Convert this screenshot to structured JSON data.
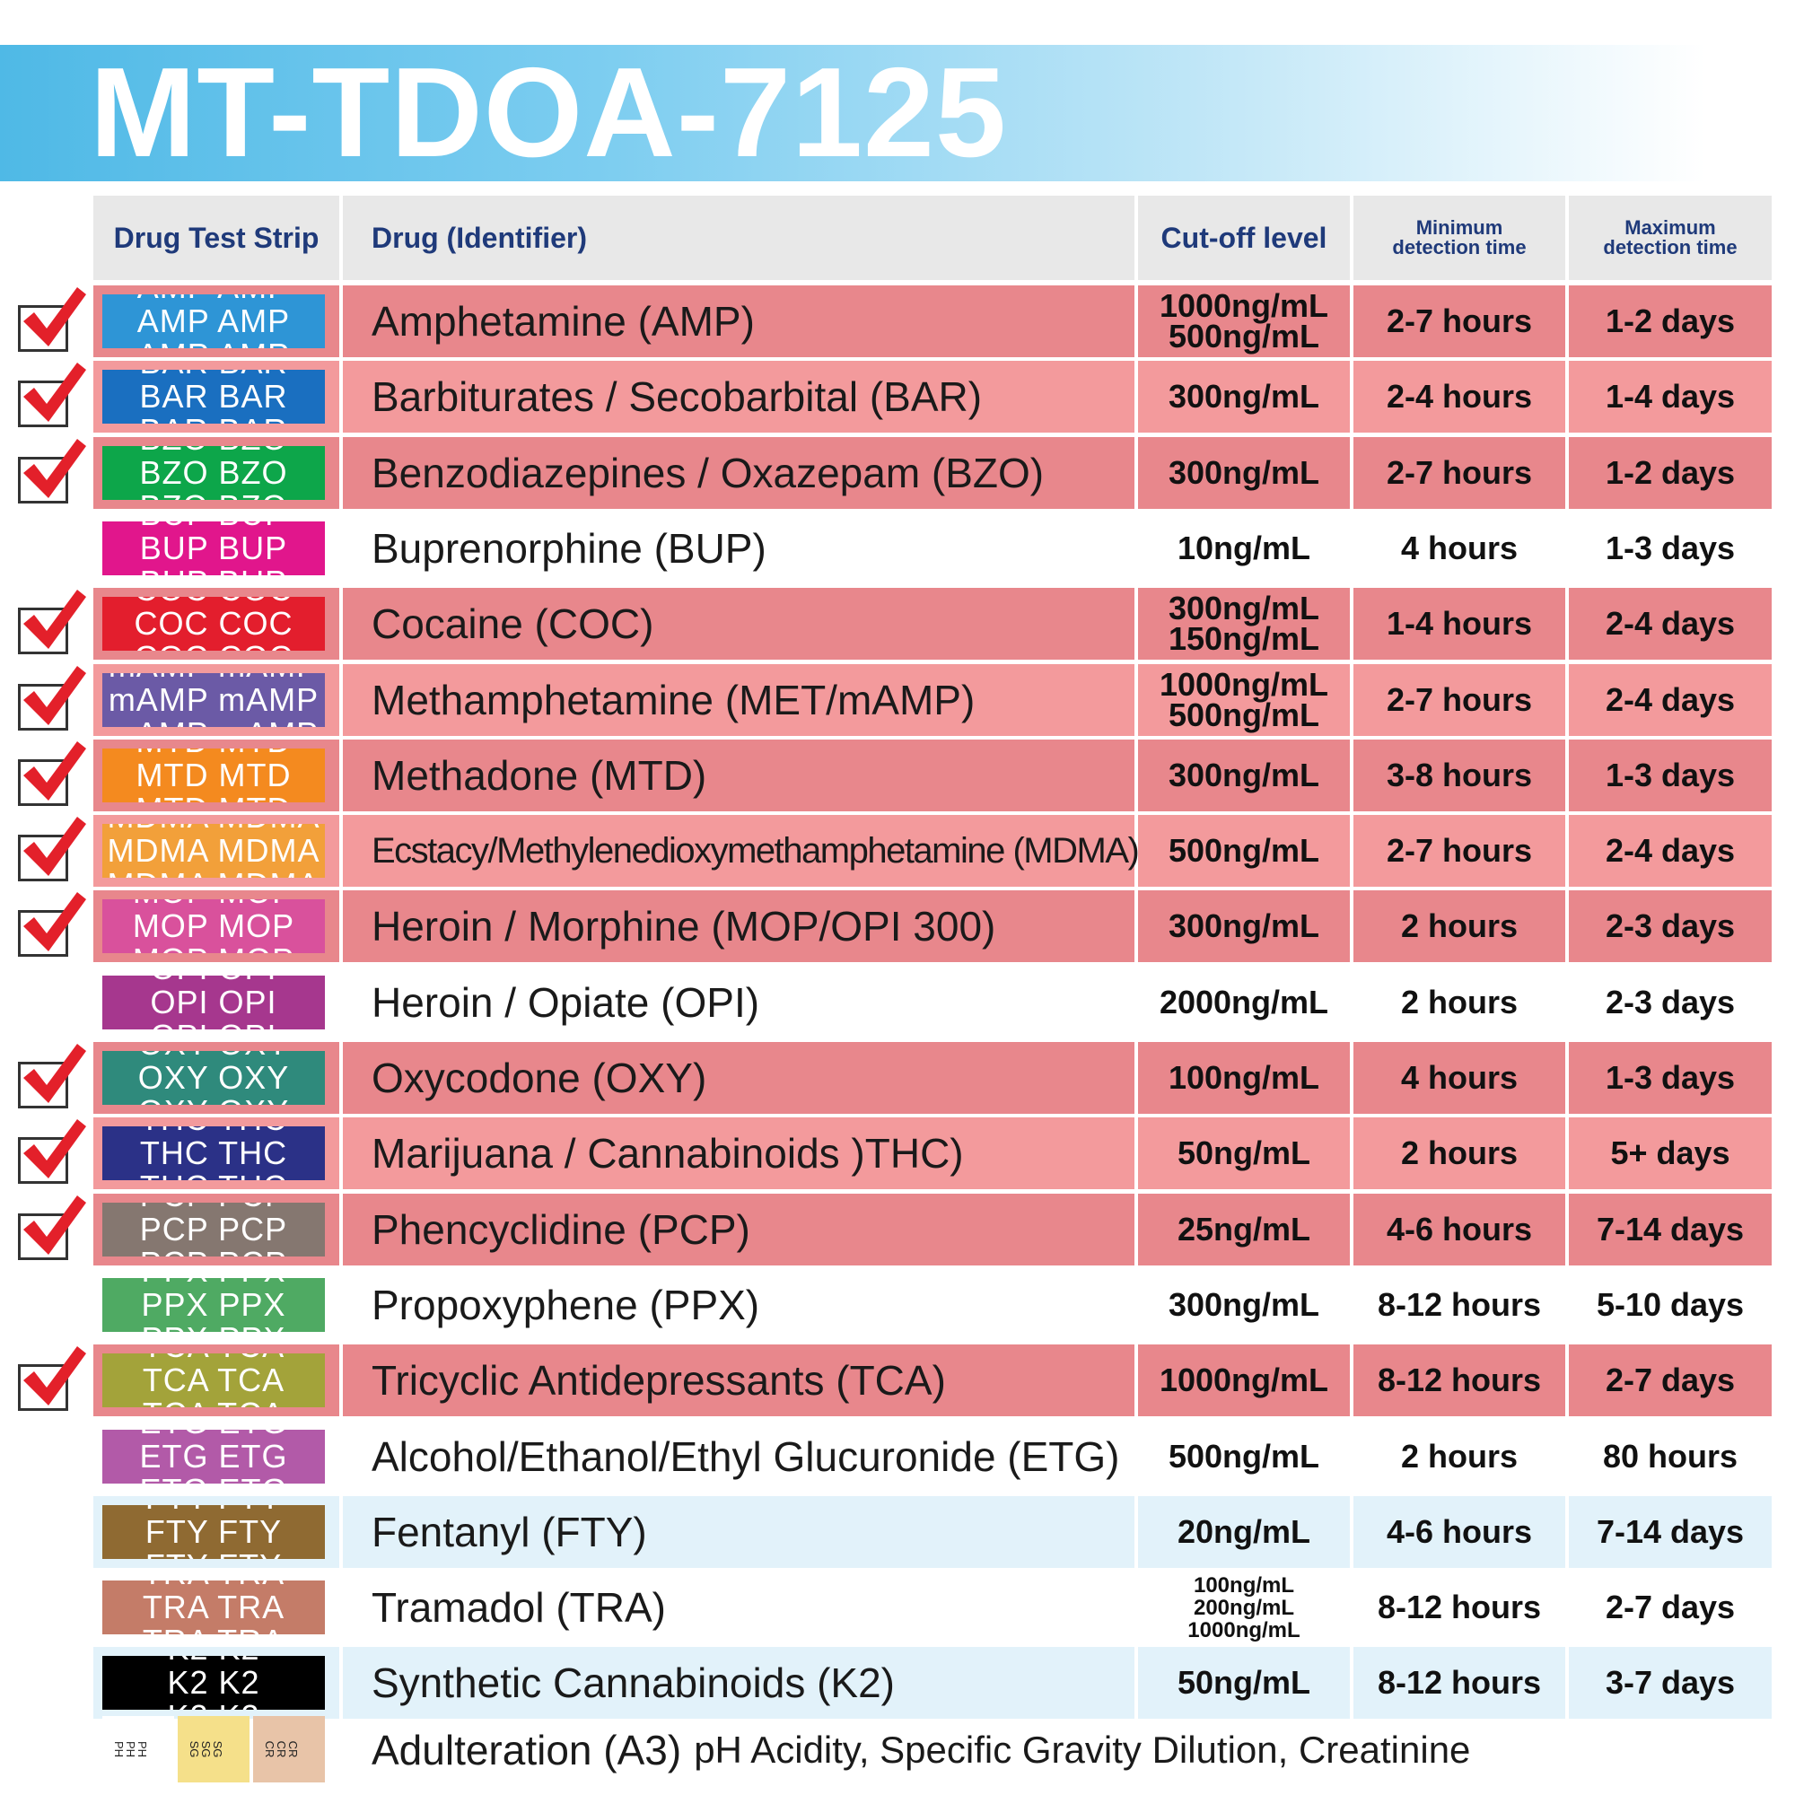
{
  "title": "MT-TDOA-7125",
  "headers": {
    "strip": "Drug Test Strip",
    "drug": "Drug (Identifier)",
    "cutoff": "Cut-off level",
    "min_line1": "Minimum",
    "min_line2": "detection time",
    "max_line1": "Maximum",
    "max_line2": "detection time"
  },
  "colors": {
    "checked_row_bg": "#e8878c",
    "checked_row_bg_alt": "#f39a9c",
    "blue_row_bg": "#e2f2fa",
    "check_red": "#e3202a",
    "header_text": "#1f3a7a"
  },
  "rows": [
    {
      "code": "AMP",
      "drug": "Amphetamine (AMP)",
      "cutoff": [
        "1000ng/mL",
        "500ng/mL"
      ],
      "min": "2-7 hours",
      "max": "1-2 days",
      "checked": true,
      "style": "pink",
      "strip_color": "#2e95d6"
    },
    {
      "code": "BAR",
      "drug": "Barbiturates / Secobarbital (BAR)",
      "cutoff": [
        "300ng/mL"
      ],
      "min": "2-4 hours",
      "max": "1-4 days",
      "checked": true,
      "style": "pink",
      "strip_color": "#1a6fc0"
    },
    {
      "code": "BZO",
      "drug": "Benzodiazepines / Oxazepam (BZO)",
      "cutoff": [
        "300ng/mL"
      ],
      "min": "2-7 hours",
      "max": "1-2 days",
      "checked": true,
      "style": "pink",
      "strip_color": "#0da64a"
    },
    {
      "code": "BUP",
      "drug": "Buprenorphine (BUP)",
      "cutoff": [
        "10ng/mL"
      ],
      "min": "4 hours",
      "max": "1-3 days",
      "checked": false,
      "style": "white",
      "strip_color": "#e1168c"
    },
    {
      "code": "COC",
      "drug": "Cocaine (COC)",
      "cutoff": [
        "300ng/mL",
        "150ng/mL"
      ],
      "min": "1-4 hours",
      "max": "2-4 days",
      "checked": true,
      "style": "pink",
      "strip_color": "#e31e2d"
    },
    {
      "code": "mAMP",
      "drug": "Methamphetamine (MET/mAMP)",
      "cutoff": [
        "1000ng/mL",
        "500ng/mL"
      ],
      "min": "2-7 hours",
      "max": "2-4 days",
      "checked": true,
      "style": "pink",
      "strip_color": "#6b5aa6"
    },
    {
      "code": "MTD",
      "drug": "Methadone (MTD)",
      "cutoff": [
        "300ng/mL"
      ],
      "min": "3-8 hours",
      "max": "1-3 days",
      "checked": true,
      "style": "pink",
      "strip_color": "#f48a1f"
    },
    {
      "code": "MDMA",
      "drug": "Ecstacy/Methylenedioxymethamphetamine (MDMA)",
      "cutoff": [
        "500ng/mL"
      ],
      "min": "2-7 hours",
      "max": "2-4 days",
      "checked": true,
      "style": "pink",
      "strip_color": "#f2a03a"
    },
    {
      "code": "MOP",
      "drug": "Heroin / Morphine (MOP/OPI 300)",
      "cutoff": [
        "300ng/mL"
      ],
      "min": "2 hours",
      "max": "2-3 days",
      "checked": true,
      "style": "pink",
      "strip_color": "#d9519c"
    },
    {
      "code": "OPI",
      "drug": "Heroin / Opiate (OPI)",
      "cutoff": [
        "2000ng/mL"
      ],
      "min": "2 hours",
      "max": "2-3 days",
      "checked": false,
      "style": "white",
      "strip_color": "#a6378e"
    },
    {
      "code": "OXY",
      "drug": "Oxycodone (OXY)",
      "cutoff": [
        "100ng/mL"
      ],
      "min": "4 hours",
      "max": "1-3 days",
      "checked": true,
      "style": "pink",
      "strip_color": "#2f8a7c"
    },
    {
      "code": "THC",
      "drug": "Marijuana / Cannabinoids )THC)",
      "cutoff": [
        "50ng/mL"
      ],
      "min": "2 hours",
      "max": "5+ days",
      "checked": true,
      "style": "pink",
      "strip_color": "#2b3187"
    },
    {
      "code": "PCP",
      "drug": "Phencyclidine (PCP)",
      "cutoff": [
        "25ng/mL"
      ],
      "min": "4-6 hours",
      "max": "7-14 days",
      "checked": true,
      "style": "pink",
      "strip_color": "#857770"
    },
    {
      "code": "PPX",
      "drug": "Propoxyphene (PPX)",
      "cutoff": [
        "300ng/mL"
      ],
      "min": "8-12 hours",
      "max": "5-10 days",
      "checked": false,
      "style": "white",
      "strip_color": "#4faa63"
    },
    {
      "code": "TCA",
      "drug": "Tricyclic Antidepressants (TCA)",
      "cutoff": [
        "1000ng/mL"
      ],
      "min": "8-12 hours",
      "max": "2-7 days",
      "checked": true,
      "style": "pink",
      "strip_color": "#a3a33a"
    },
    {
      "code": "ETG",
      "drug": "Alcohol/Ethanol/Ethyl Glucuronide (ETG)",
      "cutoff": [
        "500ng/mL"
      ],
      "min": "2 hours",
      "max": "80 hours",
      "checked": false,
      "style": "white",
      "strip_color": "#b25aa8"
    },
    {
      "code": "FTY",
      "drug": "Fentanyl (FTY)",
      "cutoff": [
        "20ng/mL"
      ],
      "min": "4-6 hours",
      "max": "7-14 days",
      "checked": false,
      "style": "blue",
      "strip_color": "#8f6a32"
    },
    {
      "code": "TRA",
      "drug": "Tramadol (TRA)",
      "cutoff": [
        "100ng/mL",
        "200ng/mL",
        "1000ng/mL"
      ],
      "min": "8-12 hours",
      "max": "2-7 days",
      "checked": false,
      "style": "white",
      "strip_color": "#c47c68"
    },
    {
      "code": "K2",
      "drug": "Synthetic Cannabinoids (K2)",
      "cutoff": [
        "50ng/mL"
      ],
      "min": "8-12 hours",
      "max": "3-7 days",
      "checked": false,
      "style": "blue",
      "strip_color": "#000000"
    }
  ],
  "adulteration": {
    "drug": "Adulteration (A3)",
    "detail": "pH Acidity, Specific Gravity Dilution, Creatinine",
    "pad_labels": [
      "PH",
      "SG",
      "CR"
    ],
    "pad_colors": [
      "#ffffff",
      "#f5e08a",
      "#e8c4a8"
    ]
  }
}
